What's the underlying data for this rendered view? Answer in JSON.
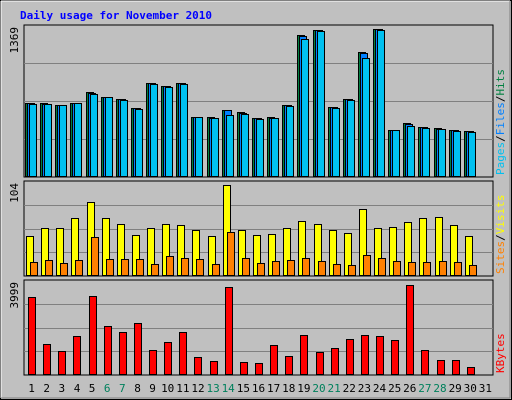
{
  "chart_data": {
    "type": "bar",
    "title": "Daily usage for November 2010",
    "colors": {
      "background": "#c0c0c0",
      "title_text": "#0000ff",
      "pages": "#00c0f0",
      "files": "#0080ff",
      "hits": "#008040",
      "visits": "#ffff00",
      "sites": "#ff8000",
      "kbytes": "#ff0000",
      "weekend_label": "#00805c",
      "weekday_label": "#000000"
    },
    "categories": [
      "1",
      "2",
      "3",
      "4",
      "5",
      "6",
      "7",
      "8",
      "9",
      "10",
      "11",
      "12",
      "13",
      "14",
      "15",
      "16",
      "17",
      "18",
      "19",
      "20",
      "21",
      "22",
      "23",
      "24",
      "25",
      "26",
      "27",
      "28",
      "29",
      "30",
      "31"
    ],
    "weekend_days": [
      "6",
      "7",
      "13",
      "14",
      "20",
      "21",
      "27",
      "28"
    ],
    "panels": [
      {
        "id": "top",
        "max_label": "1369",
        "ylim": [
          0,
          1369
        ],
        "legend": [
          {
            "text": "Pages",
            "color": "#00c0f0"
          },
          {
            "text": "/",
            "color": "#000000"
          },
          {
            "text": "Files",
            "color": "#0080ff"
          },
          {
            "text": "/",
            "color": "#000000"
          },
          {
            "text": "Hits",
            "color": "#008040"
          }
        ],
        "series": [
          {
            "name": "Hits",
            "color": "#008040",
            "offset": -3,
            "values": [
              681,
              680,
              668,
              686,
              782,
              743,
              718,
              638,
              868,
              842,
              872,
              556,
              551,
              620,
              597,
              545,
              551,
              669,
              1316,
              1364,
              645,
              720,
              1153,
              1369,
              436,
              495,
              465,
              450,
              437,
              423,
              0
            ]
          },
          {
            "name": "Files",
            "color": "#0080ff",
            "offset": -1,
            "values": [
              680,
              679,
              667,
              685,
              780,
              742,
              717,
              637,
              866,
              840,
              870,
              555,
              550,
              619,
              596,
              544,
              550,
              668,
              1305,
              1361,
              644,
              718,
              1150,
              1366,
              434,
              490,
              462,
              448,
              435,
              421,
              0
            ]
          },
          {
            "name": "Pages",
            "color": "#00c0f0",
            "offset": 1,
            "values": [
              677,
              675,
              663,
              681,
              770,
              737,
              713,
              633,
              857,
              830,
              862,
              551,
              545,
              570,
              585,
              539,
              546,
              660,
              1280,
              1350,
              640,
              710,
              1100,
              1360,
              432,
              470,
              455,
              442,
              430,
              418,
              0
            ]
          }
        ]
      },
      {
        "id": "middle",
        "max_label": "104",
        "ylim": [
          0,
          104
        ],
        "legend": [
          {
            "text": "Sites",
            "color": "#ff8000"
          },
          {
            "text": "/",
            "color": "#000000"
          },
          {
            "text": "Visits",
            "color": "#ffff00"
          }
        ],
        "series": [
          {
            "name": "Visits",
            "color": "#ffff00",
            "offset": -2,
            "values": [
              46,
              55,
              55,
              66,
              84,
              66,
              60,
              47,
              55,
              60,
              58,
              52,
              46,
              104,
              53,
              47,
              48,
              55,
              63,
              60,
              53,
              49,
              77,
              55,
              56,
              62,
              66,
              67,
              58,
              46,
              0
            ]
          },
          {
            "name": "Sites",
            "color": "#ff8000",
            "offset": 2,
            "values": [
              16,
              18,
              15,
              18,
              45,
              19,
              19,
              19,
              14,
              23,
              20,
              19,
              14,
              50,
              20,
              15,
              17,
              18,
              20,
              17,
              14,
              13,
              24,
              21,
              17,
              16,
              16,
              17,
              16,
              12,
              0
            ]
          }
        ]
      },
      {
        "id": "bottom",
        "max_label": "3999",
        "ylim": [
          0,
          3999
        ],
        "legend": [
          {
            "text": "KBytes",
            "color": "#ff0000"
          }
        ],
        "series": [
          {
            "name": "KBytes",
            "color": "#ff0000",
            "offset": 0,
            "values": [
              3440,
              1350,
              1040,
              1700,
              3480,
              2150,
              1890,
              2300,
              1090,
              1470,
              1900,
              780,
              620,
              3860,
              560,
              520,
              1310,
              840,
              1760,
              990,
              1180,
              1600,
              1770,
              1730,
              1550,
              3960,
              1080,
              660,
              640,
              350,
              0
            ]
          }
        ]
      }
    ]
  }
}
